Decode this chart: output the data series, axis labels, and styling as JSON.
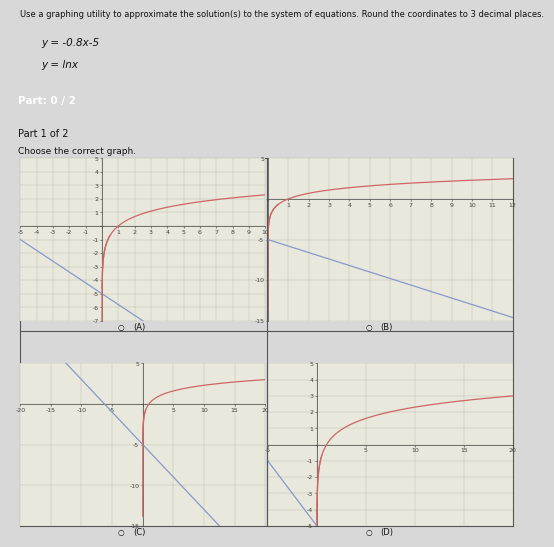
{
  "title_text": "Use a graphing utility to approximate the solution(s) to the system of equations. Round the coordinates to 3 decimal places.",
  "eq1": "y = -0.8x-5",
  "eq2": "y = lnx",
  "part_label": "Part: 0 / 2",
  "part1_label": "Part 1 of 2",
  "choose_text": "Choose the correct graph.",
  "subplots": [
    {
      "label": "(A)",
      "xlim": [
        -5,
        10
      ],
      "ylim": [
        -7,
        5
      ],
      "x_tick_spacing": 1,
      "y_tick_spacing": 1
    },
    {
      "label": "(B)",
      "xlim": [
        0,
        12
      ],
      "ylim": [
        -15,
        5
      ],
      "x_tick_spacing": 1,
      "y_tick_spacing": 5
    },
    {
      "label": "(C)",
      "xlim": [
        -20,
        20
      ],
      "ylim": [
        -15,
        5
      ],
      "x_tick_spacing": 5,
      "y_tick_spacing": 5
    },
    {
      "label": "(D)",
      "xlim": [
        -5,
        20
      ],
      "ylim": [
        -5,
        5
      ],
      "x_tick_spacing": 5,
      "y_tick_spacing": 1
    }
  ],
  "line_color": "#8899cc",
  "log_color": "#cc6666",
  "bg_color": "#d8d8d8",
  "plot_bg": "#e8e8dc",
  "grid_color": "#bbbbaa",
  "axis_color": "#444444",
  "part_bg": "#8888aa",
  "text_color": "#111111",
  "tick_fontsize": 4.5
}
